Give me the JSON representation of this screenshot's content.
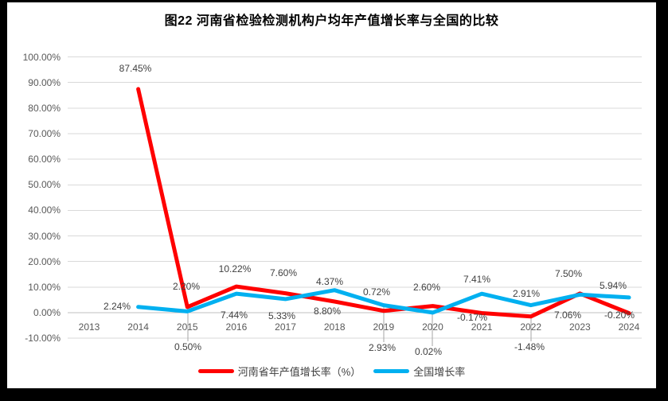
{
  "frame": {
    "border_color": "#000000",
    "panel_background": "#FFFFFF"
  },
  "title": "图22  河南省检验检测机构户均年产值增长率与全国的比较",
  "chart_data": {
    "type": "line",
    "title": "图22  河南省检验检测机构户均年产值增长率与全国的比较",
    "categories": [
      "2013",
      "2014",
      "2015",
      "2016",
      "2017",
      "2018",
      "2019",
      "2020",
      "2021",
      "2022",
      "2023",
      "2024"
    ],
    "series": [
      {
        "name": "河南省年产值增长率（%）",
        "key": "henan",
        "color": "#FF0000",
        "values": [
          null,
          87.45,
          2.2,
          10.22,
          7.6,
          4.37,
          0.72,
          2.6,
          -0.17,
          -1.48,
          7.5,
          -0.2
        ],
        "labels": [
          "",
          "87.45%",
          "2.20%",
          "10.22%",
          "7.60%",
          "4.37%",
          "0.72%",
          "2.60%",
          "-0.17%",
          "-1.48%",
          "7.50%",
          "-0.20%"
        ]
      },
      {
        "name": "全国增长率",
        "key": "national",
        "color": "#00B0F0",
        "values": [
          null,
          2.24,
          0.5,
          7.44,
          5.33,
          8.8,
          2.93,
          0.02,
          7.41,
          2.91,
          7.06,
          5.94
        ],
        "labels": [
          "",
          "2.24%",
          "0.50%",
          "7.44%",
          "5.33%",
          "8.80%",
          "2.93%",
          "0.02%",
          "7.41%",
          "2.91%",
          "7.06%",
          "5.94%"
        ]
      }
    ],
    "xlabel": "",
    "ylabel": "",
    "ylim": [
      -10,
      100
    ],
    "y_ticks": [
      "100.00%",
      "90.00%",
      "80.00%",
      "70.00%",
      "60.00%",
      "50.00%",
      "40.00%",
      "30.00%",
      "20.00%",
      "10.00%",
      "0.00%",
      "-10.00%"
    ],
    "grid": true,
    "data_labels": true,
    "legend_position": "bottom",
    "colors": {
      "gridline": "#D9D9D9",
      "axis_line": "#BFBFBF",
      "leader_line": "#A6A6A6",
      "tick_text": "#595959",
      "label_text": "#404040"
    }
  }
}
